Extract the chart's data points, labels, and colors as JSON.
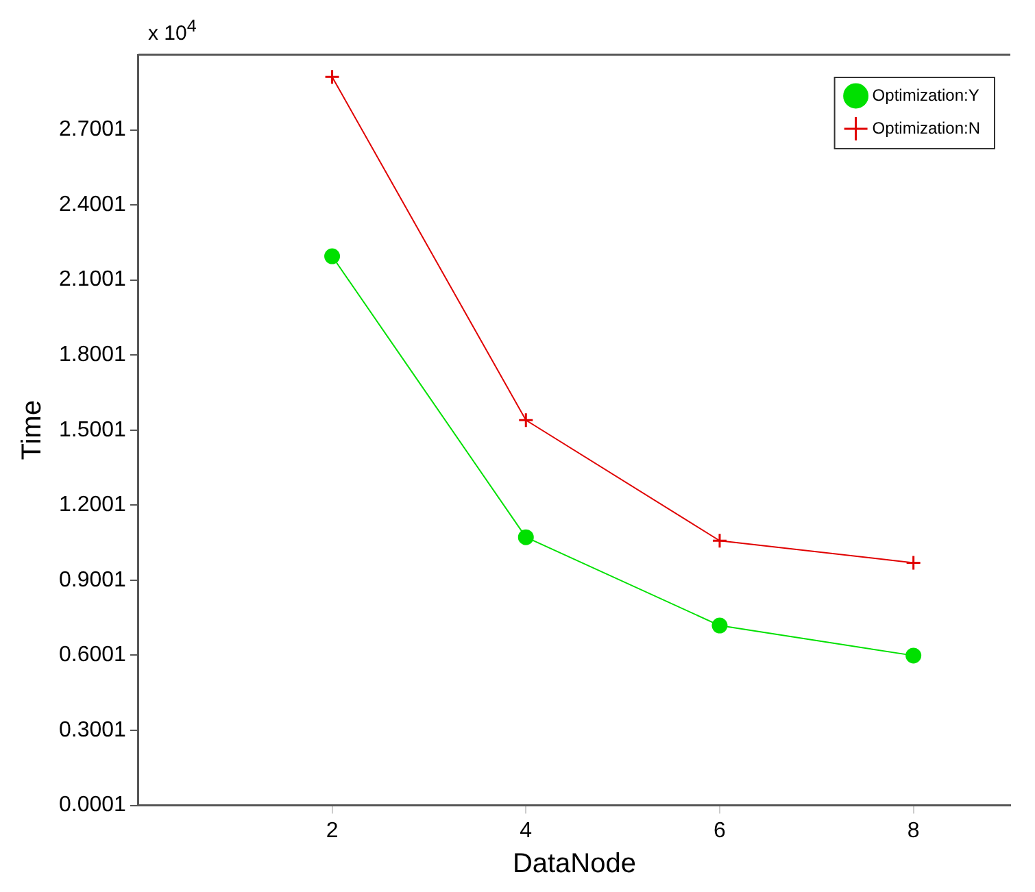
{
  "chart_data": {
    "type": "line",
    "xlabel": "DataNode",
    "ylabel": "Time",
    "annotations": [
      "x 10$^{4}$"
    ],
    "x": [
      2,
      4,
      6,
      8
    ],
    "series": [
      {
        "name": "Optimization:Y",
        "color": "#00e000",
        "marker": "circle",
        "values": [
          2.195,
          1.072,
          0.719,
          0.599
        ]
      },
      {
        "name": "Optimization:N",
        "color": "#e00000",
        "marker": "cross",
        "values": [
          2.912,
          1.54,
          1.058,
          0.97
        ]
      }
    ],
    "xlim": [
      0,
      9
    ],
    "xticks": [
      2,
      4,
      6,
      8
    ],
    "ylim": [
      0.0001,
      3.0001
    ],
    "yticks": [
      0.0001,
      0.3001,
      0.6001,
      0.9001,
      1.2001,
      1.5001,
      1.8001,
      2.1001,
      2.4001,
      2.7001
    ],
    "grid": false,
    "legend": "top right",
    "line_style": "solid"
  }
}
